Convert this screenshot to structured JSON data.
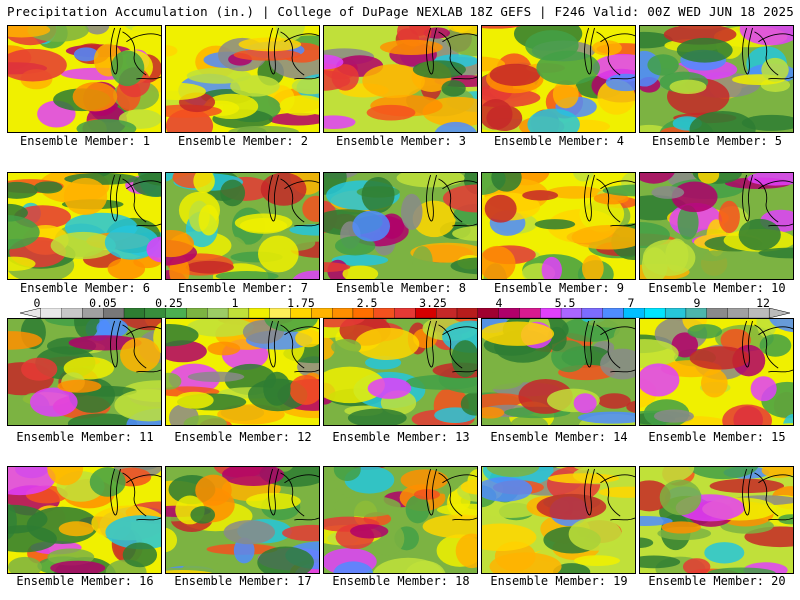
{
  "header": {
    "left": "Precipitation Accumulation (in.) | College of DuPage NEXLAB",
    "right": "18Z GEFS | F246 Valid: 00Z WED JUN 18 2025"
  },
  "members": [
    {
      "label": "Ensemble Member: 1",
      "seed": 11
    },
    {
      "label": "Ensemble Member: 2",
      "seed": 23
    },
    {
      "label": "Ensemble Member: 3",
      "seed": 37
    },
    {
      "label": "Ensemble Member: 4",
      "seed": 41
    },
    {
      "label": "Ensemble Member: 5",
      "seed": 53
    },
    {
      "label": "Ensemble Member: 6",
      "seed": 67
    },
    {
      "label": "Ensemble Member: 7",
      "seed": 71
    },
    {
      "label": "Ensemble Member: 8",
      "seed": 83
    },
    {
      "label": "Ensemble Member: 9",
      "seed": 97
    },
    {
      "label": "Ensemble Member: 10",
      "seed": 101
    },
    {
      "label": "Ensemble Member: 11",
      "seed": 113
    },
    {
      "label": "Ensemble Member: 12",
      "seed": 127
    },
    {
      "label": "Ensemble Member: 13",
      "seed": 131
    },
    {
      "label": "Ensemble Member: 14",
      "seed": 149
    },
    {
      "label": "Ensemble Member: 15",
      "seed": 151
    },
    {
      "label": "Ensemble Member: 16",
      "seed": 163
    },
    {
      "label": "Ensemble Member: 17",
      "seed": 173
    },
    {
      "label": "Ensemble Member: 18",
      "seed": 181
    },
    {
      "label": "Ensemble Member: 19",
      "seed": 191
    },
    {
      "label": "Ensemble Member: 20",
      "seed": 197
    }
  ],
  "colorbar": {
    "tick_labels": [
      "0",
      "0.05",
      "0.25",
      "1",
      "1.75",
      "2.5",
      "3.25",
      "4",
      "5.5",
      "7",
      "9",
      "12"
    ],
    "colors": [
      "#e8e8e8",
      "#c8c8c8",
      "#a0a0a0",
      "#787878",
      "#2e7d32",
      "#388e3c",
      "#4caf50",
      "#7cb342",
      "#9ccc65",
      "#c0e03a",
      "#f0f000",
      "#ffee58",
      "#ffd600",
      "#ffb300",
      "#ff8f00",
      "#ff6f00",
      "#f4511e",
      "#e53935",
      "#d50000",
      "#c62828",
      "#b71c1c",
      "#a00030",
      "#b0006a",
      "#d81b90",
      "#e040fb",
      "#aa66ff",
      "#7c6cff",
      "#4f8cff",
      "#00bfff",
      "#00e5ff",
      "#26c6da",
      "#4db6ac",
      "#8a8a8a",
      "#a0a0a0",
      "#bbbbbb"
    ]
  }
}
